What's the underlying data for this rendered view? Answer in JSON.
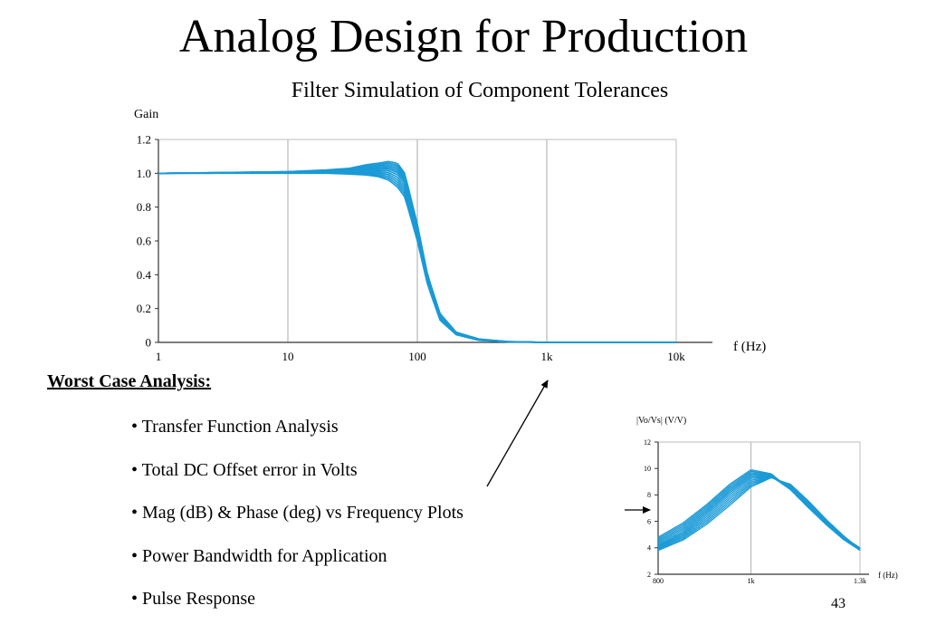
{
  "slide": {
    "title": "Analog Design for Production",
    "subtitle": "Filter Simulation of Component Tolerances",
    "number": "43"
  },
  "worst_case": {
    "heading": "Worst Case Analysis:",
    "items": [
      "• Transfer Function Analysis",
      "• Total DC Offset error in Volts",
      "• Mag (dB) & Phase (deg) vs Frequency Plots",
      "• Power Bandwidth for Application",
      "• Pulse Response"
    ]
  },
  "colors": {
    "curve": "#1a9ad6",
    "grid": "#bdbdbd",
    "axis": "#333333"
  },
  "chart_data": [
    {
      "type": "line",
      "title": "",
      "ylabel": "Gain",
      "xlabel": "f (Hz)",
      "xscale": "log",
      "xlim": [
        1,
        10000
      ],
      "ylim": [
        0,
        1.2
      ],
      "xticks": [
        "1",
        "10",
        "100",
        "1k",
        "10k"
      ],
      "yticks": [
        "0",
        "0.2",
        "0.4",
        "0.6",
        "0.8",
        "1.0",
        "1.2"
      ],
      "grid": "vertical",
      "curve_count": 12,
      "series": [
        {
          "x": [
            1,
            10,
            20,
            30,
            40,
            50,
            60,
            70,
            80,
            100,
            120,
            150,
            200,
            300,
            500,
            1000,
            10000
          ],
          "y": [
            1.0,
            1.01,
            1.02,
            1.03,
            1.05,
            1.06,
            1.07,
            1.06,
            1.0,
            0.7,
            0.4,
            0.17,
            0.06,
            0.02,
            0.005,
            0.0,
            0.0
          ]
        },
        {
          "x": [
            1,
            10,
            20,
            30,
            40,
            50,
            60,
            70,
            80,
            100,
            120,
            150,
            200,
            300,
            500,
            1000,
            10000
          ],
          "y": [
            1.0,
            1.005,
            1.01,
            1.015,
            1.02,
            1.02,
            1.02,
            1.0,
            0.95,
            0.66,
            0.38,
            0.15,
            0.05,
            0.015,
            0.004,
            0.0,
            0.0
          ]
        },
        {
          "x": [
            1,
            10,
            20,
            30,
            40,
            50,
            60,
            70,
            80,
            100,
            120,
            150,
            200,
            300,
            500,
            1000,
            10000
          ],
          "y": [
            1.0,
            1.0,
            1.0,
            0.995,
            0.99,
            0.98,
            0.96,
            0.92,
            0.86,
            0.6,
            0.34,
            0.13,
            0.045,
            0.012,
            0.003,
            0.0,
            0.0
          ]
        }
      ]
    },
    {
      "type": "line",
      "title": "",
      "ylabel": "|Vo/Vs| (V/V)",
      "xlabel": "f (Hz)",
      "xscale": "log",
      "xlim": [
        800,
        1300
      ],
      "ylim": [
        2,
        12
      ],
      "xticks": [
        "800",
        "1k",
        "1.3k"
      ],
      "yticks": [
        "2",
        "4",
        "6",
        "8",
        "10",
        "12"
      ],
      "grid": "vertical",
      "curve_count": 12,
      "series": [
        {
          "x": [
            800,
            850,
            900,
            950,
            1000,
            1050,
            1100,
            1150,
            1200,
            1250,
            1300
          ],
          "y": [
            4.8,
            5.9,
            7.3,
            8.8,
            9.9,
            9.6,
            8.4,
            7.0,
            5.8,
            4.8,
            4.0
          ]
        },
        {
          "x": [
            800,
            850,
            900,
            950,
            1000,
            1050,
            1100,
            1150,
            1200,
            1250,
            1300
          ],
          "y": [
            4.2,
            5.2,
            6.6,
            8.1,
            9.3,
            9.4,
            8.4,
            7.0,
            5.7,
            4.6,
            3.8
          ]
        },
        {
          "x": [
            800,
            850,
            900,
            950,
            1000,
            1050,
            1100,
            1150,
            1200,
            1250,
            1300
          ],
          "y": [
            3.8,
            4.6,
            5.8,
            7.2,
            8.6,
            9.3,
            8.8,
            7.5,
            6.1,
            4.9,
            3.9
          ]
        }
      ]
    }
  ]
}
